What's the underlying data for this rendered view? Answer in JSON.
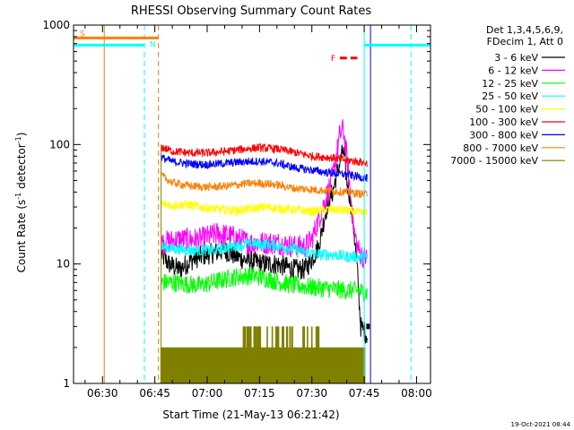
{
  "chart_data": {
    "type": "line",
    "title": "RHESSI Observing Summary Count Rates",
    "xlabel": "Start Time (21-May-13 06:21:42)",
    "ylabel": "Count Rate (s⁻¹ detector⁻¹)",
    "ylabel_main": "Count Rate (s",
    "ylabel_sup1": "-1",
    "ylabel_mid": " detector",
    "ylabel_sup2": "-1",
    "ylabel_end": ")",
    "yscale": "log",
    "ylim": [
      1,
      1000
    ],
    "xlim_minutes": [
      381.7,
      484
    ],
    "x_ticks": [
      {
        "label": "06:30",
        "min": 390
      },
      {
        "label": "06:45",
        "min": 405
      },
      {
        "label": "07:00",
        "min": 420
      },
      {
        "label": "07:15",
        "min": 435
      },
      {
        "label": "07:30",
        "min": 450
      },
      {
        "label": "07:45",
        "min": 465
      },
      {
        "label": "08:00",
        "min": 480
      }
    ],
    "y_ticks": [
      {
        "label": "1",
        "value": 1
      },
      {
        "label": "10",
        "value": 10
      },
      {
        "label": "100",
        "value": 100
      },
      {
        "label": "1000",
        "value": 1000
      }
    ],
    "legend_header": [
      "Det 1,3,4,5,6,9,",
      "FDecim 1, Att 0"
    ],
    "legend_position": "top-right (outside plot)",
    "timestamp": "19-Oct-2021 08:44",
    "flags": [
      {
        "label": "S",
        "color": "#ff7f00",
        "start": 381.7,
        "end": 406,
        "level": 780
      },
      {
        "label": "N",
        "color": "#00ffff",
        "start": 381.7,
        "end": 402,
        "level": 680
      },
      {
        "label": "",
        "color": "#00ffff",
        "start": 465,
        "end": 484,
        "level": 680
      },
      {
        "label": "F",
        "color": "#ff0000",
        "start": 458,
        "end": 463,
        "level": 530
      }
    ],
    "vlines": [
      {
        "x": 390.5,
        "color": "#ff7f00",
        "style": "solid"
      },
      {
        "x": 402.0,
        "color": "#00ffff",
        "style": "dashed"
      },
      {
        "x": 406.0,
        "color": "#ff7f00",
        "style": "dashed"
      },
      {
        "x": 465.0,
        "color": "#00ffff",
        "style": "solid"
      },
      {
        "x": 478.4,
        "color": "#00ffff",
        "style": "dashed"
      },
      {
        "x": 466.8,
        "color": "#0000ff",
        "style": "solid"
      }
    ],
    "data_window": [
      406.8,
      466.8
    ],
    "series": [
      {
        "name": "3 - 6 keV",
        "color": "#000000",
        "points": [
          [
            406.8,
            12
          ],
          [
            409,
            10
          ],
          [
            412,
            9
          ],
          [
            416,
            11
          ],
          [
            420,
            12
          ],
          [
            425,
            13
          ],
          [
            430,
            11
          ],
          [
            436,
            10
          ],
          [
            440,
            10
          ],
          [
            445,
            9
          ],
          [
            448,
            9
          ],
          [
            450,
            11
          ],
          [
            452,
            14
          ],
          [
            453,
            20
          ],
          [
            454,
            28
          ],
          [
            455,
            35
          ],
          [
            456,
            40
          ],
          [
            457,
            55
          ],
          [
            458,
            70
          ],
          [
            459,
            90
          ],
          [
            460,
            50
          ],
          [
            461,
            35
          ],
          [
            462,
            20
          ],
          [
            463,
            9
          ],
          [
            464,
            3
          ],
          [
            466,
            2.5
          ]
        ],
        "noise": 0.09
      },
      {
        "name": "6 - 12 keV",
        "color": "#ff00ff",
        "points": [
          [
            406.8,
            15
          ],
          [
            412,
            16
          ],
          [
            418,
            16
          ],
          [
            423,
            18
          ],
          [
            427,
            17
          ],
          [
            432,
            15
          ],
          [
            436,
            15
          ],
          [
            440,
            15
          ],
          [
            445,
            14
          ],
          [
            448,
            14
          ],
          [
            450,
            16
          ],
          [
            452,
            24
          ],
          [
            454,
            35
          ],
          [
            456,
            55
          ],
          [
            457,
            80
          ],
          [
            458,
            120
          ],
          [
            459,
            135
          ],
          [
            460,
            80
          ],
          [
            461,
            40
          ],
          [
            462,
            20
          ],
          [
            463,
            14
          ],
          [
            464,
            12
          ],
          [
            466,
            11
          ]
        ],
        "noise": 0.1
      },
      {
        "name": "12 - 25 keV",
        "color": "#00ff00",
        "points": [
          [
            406.8,
            7
          ],
          [
            410,
            7
          ],
          [
            414,
            6.8
          ],
          [
            418,
            6.6
          ],
          [
            423,
            7.2
          ],
          [
            428,
            7.8
          ],
          [
            433,
            8
          ],
          [
            437,
            7.6
          ],
          [
            441,
            7
          ],
          [
            445,
            6.6
          ],
          [
            450,
            6.4
          ],
          [
            455,
            6.2
          ],
          [
            460,
            6
          ],
          [
            463,
            6
          ],
          [
            466,
            5.7
          ]
        ],
        "noise": 0.08
      },
      {
        "name": "25 - 50 keV",
        "color": "#00ffff",
        "points": [
          [
            406.8,
            14
          ],
          [
            410,
            13.5
          ],
          [
            416,
            13
          ],
          [
            422,
            13
          ],
          [
            428,
            14.2
          ],
          [
            433,
            14.8
          ],
          [
            438,
            14.5
          ],
          [
            444,
            13.5
          ],
          [
            448,
            12.5
          ],
          [
            452,
            12
          ],
          [
            456,
            12
          ],
          [
            460,
            11.5
          ],
          [
            463,
            11.5
          ],
          [
            466,
            11.2
          ]
        ],
        "noise": 0.05
      },
      {
        "name": "50 - 100 keV",
        "color": "#ffff00",
        "points": [
          [
            406.8,
            32
          ],
          [
            410,
            31
          ],
          [
            414,
            31.5
          ],
          [
            418,
            30
          ],
          [
            423,
            28.8
          ],
          [
            428,
            28
          ],
          [
            433,
            29
          ],
          [
            437,
            30
          ],
          [
            441,
            29
          ],
          [
            445,
            28.5
          ],
          [
            450,
            27.5
          ],
          [
            455,
            28.5
          ],
          [
            460,
            28
          ],
          [
            463,
            27
          ],
          [
            466,
            26.5
          ]
        ],
        "noise": 0.04
      },
      {
        "name": "100 - 300 keV",
        "color": "#ff0000",
        "points": [
          [
            406.8,
            95
          ],
          [
            410,
            88
          ],
          [
            415,
            85
          ],
          [
            420,
            85
          ],
          [
            426,
            88
          ],
          [
            431,
            92
          ],
          [
            435,
            94
          ],
          [
            440,
            92
          ],
          [
            445,
            86
          ],
          [
            450,
            80
          ],
          [
            455,
            78
          ],
          [
            460,
            74
          ],
          [
            463,
            72
          ],
          [
            466,
            70
          ]
        ],
        "noise": 0.035
      },
      {
        "name": "300 - 800 keV",
        "color": "#0000ff",
        "points": [
          [
            406.8,
            78
          ],
          [
            410,
            72
          ],
          [
            415,
            69
          ],
          [
            420,
            68
          ],
          [
            426,
            70
          ],
          [
            431,
            72
          ],
          [
            435,
            72.5
          ],
          [
            440,
            70
          ],
          [
            445,
            64
          ],
          [
            450,
            61
          ],
          [
            455,
            58
          ],
          [
            460,
            56
          ],
          [
            463,
            54
          ],
          [
            466,
            52
          ]
        ],
        "noise": 0.035
      },
      {
        "name": "800 - 7000 keV",
        "color": "#ff7f00",
        "points": [
          [
            406.8,
            55
          ],
          [
            410,
            48
          ],
          [
            415,
            45
          ],
          [
            420,
            44
          ],
          [
            426,
            45
          ],
          [
            431,
            47
          ],
          [
            435,
            47.5
          ],
          [
            440,
            46
          ],
          [
            445,
            43
          ],
          [
            450,
            42
          ],
          [
            455,
            41
          ],
          [
            460,
            40
          ],
          [
            463,
            39
          ],
          [
            466,
            38
          ]
        ],
        "noise": 0.035
      },
      {
        "name": "7000 - 15000 keV",
        "color": "#808000",
        "points": [
          [
            406.8,
            1.4
          ],
          [
            466.8,
            1.4
          ]
        ],
        "noise": 0
      }
    ]
  }
}
